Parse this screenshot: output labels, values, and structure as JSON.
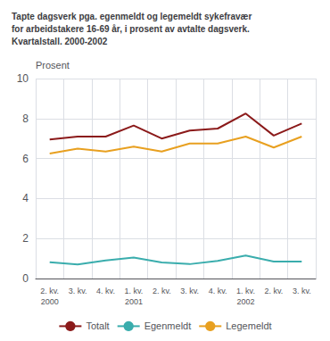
{
  "chart_data": {
    "type": "line",
    "title": "Tapte dagsverk pga. egenmeldt og legemeldt sykefravær\nfor arbeidstakere 16-69 år, i prosent av avtalte dagsverk.\nKvartalstall. 2000-2002",
    "y_label": "Prosent",
    "categories": [
      "2. kv.\n2000",
      "3. kv.",
      "4. kv.",
      "1. kv.\n2001",
      "2. kv.",
      "3. kv.",
      "4. kv.",
      "1. kv.\n2002",
      "2. kv.",
      "3. kv."
    ],
    "series": [
      {
        "name": "Totalt",
        "color": "#8B1A1A",
        "values": [
          6.95,
          7.1,
          7.1,
          7.65,
          7.0,
          7.4,
          7.5,
          8.25,
          7.15,
          7.75
        ]
      },
      {
        "name": "Egenmeldt",
        "color": "#3AADAD",
        "values": [
          0.82,
          0.7,
          0.9,
          1.05,
          0.8,
          0.72,
          0.88,
          1.15,
          0.85,
          0.85
        ]
      },
      {
        "name": "Legemeldt",
        "color": "#E8A020",
        "values": [
          6.25,
          6.5,
          6.35,
          6.6,
          6.35,
          6.75,
          6.75,
          7.1,
          6.55,
          7.1
        ]
      }
    ],
    "ylim": [
      0,
      10
    ],
    "yticks": [
      0,
      2,
      4,
      6,
      8,
      10
    ],
    "grid": true,
    "legend": "bottom"
  }
}
